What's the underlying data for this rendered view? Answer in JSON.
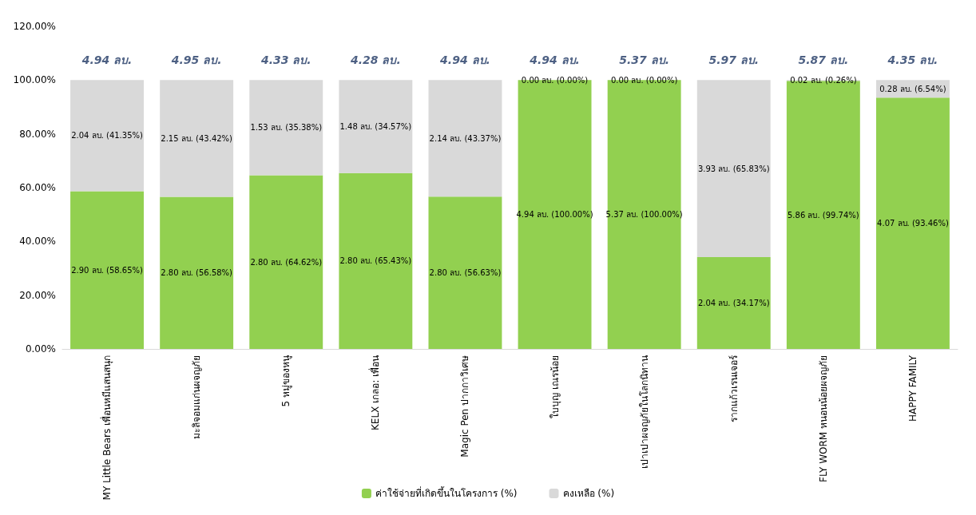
{
  "chart_data": {
    "type": "bar",
    "stacked": true,
    "categories": [
      "MY Little Bears เพื่อนหมีแสนสนุก",
      "มะลิจอมแก่นผจญภัย",
      "5 หมู่ของหนู",
      "KELX เกลอ: เพื่อน",
      "Magic Pen ปากกาวิเศษ",
      "ใบบุญ เณรน้อย",
      "เปาเปาผจญภัยในโลกนิทาน",
      "รากแก้วเรนเจอร์",
      "FLY WORM หนอนน้อยผจญภัย",
      "HAPPY FAMILY"
    ],
    "series": [
      {
        "name": "ค่าใช้จ่ายที่เกิดขึ้นในโครงการ (%)",
        "color": "#92d050",
        "values": [
          58.65,
          56.58,
          64.62,
          65.43,
          56.63,
          100,
          100,
          34.17,
          99.74,
          93.46
        ],
        "value_labels": [
          "2.90 ลบ. (58.65%)",
          "2.80 ลบ. (56.58%)",
          "2.80 ลบ. (64.62%)",
          "2.80 ลบ. (65.43%)",
          "2.80 ลบ. (56.63%)",
          "4.94 ลบ. (100.00%)",
          "5.37 ลบ. (100.00%)",
          "2.04 ลบ. (34.17%)",
          "5.86 ลบ. (99.74%)",
          "4.07 ลบ. (93.46%)"
        ]
      },
      {
        "name": "คงเหลือ (%)",
        "color": "#d9d9d9",
        "values": [
          41.35,
          43.42,
          35.38,
          34.57,
          43.37,
          0,
          0,
          65.83,
          0.26,
          6.54
        ],
        "value_labels": [
          "2.04 ลบ. (41.35%)",
          "2.15 ลบ. (43.42%)",
          "1.53 ลบ. (35.38%)",
          "1.48 ลบ. (34.57%)",
          "2.14 ลบ. (43.37%)",
          "0.00 ลบ. (0.00%)",
          "0.00 ลบ. (0.00%)",
          "3.93 ลบ. (65.83%)",
          "0.02 ลบ. (0.26%)",
          "0.28 ลบ. (6.54%)"
        ]
      }
    ],
    "annotations": [
      {
        "text": "4.94 ลบ.",
        "x": "MY Little Bears เพื่อนหมีแสนสนุก",
        "y": 100
      },
      {
        "text": "4.95 ลบ.",
        "x": "มะลิจอมแก่นผจญภัย",
        "y": 100
      },
      {
        "text": "4.33 ลบ.",
        "x": "5 หมู่ของหนู",
        "y": 100
      },
      {
        "text": "4.28 ลบ.",
        "x": "KELX เกลอ: เพื่อน",
        "y": 100
      },
      {
        "text": "4.94 ลบ.",
        "x": "Magic Pen ปากกาวิเศษ",
        "y": 100
      },
      {
        "text": "4.94 ลบ.",
        "x": "ใบบุญ เณรน้อย",
        "y": 100
      },
      {
        "text": "5.37 ลบ.",
        "x": "เปาเปาผจญภัยในโลกนิทาน",
        "y": 100
      },
      {
        "text": "5.97 ลบ.",
        "x": "รากแก้วเรนเจอร์",
        "y": 100
      },
      {
        "text": "5.87 ลบ.",
        "x": "FLY WORM หนอนน้อยผจญภัย",
        "y": 100
      },
      {
        "text": "4.35 ลบ.",
        "x": "HAPPY FAMILY",
        "y": 100
      }
    ],
    "ylim": [
      0,
      120
    ],
    "yticks": [
      {
        "value": 0,
        "label": "0.00%"
      },
      {
        "value": 20,
        "label": "20.00%"
      },
      {
        "value": 40,
        "label": "40.00%"
      },
      {
        "value": 60,
        "label": "60.00%"
      },
      {
        "value": 80,
        "label": "80.00%"
      },
      {
        "value": 100,
        "label": "100.00%"
      },
      {
        "value": 120,
        "label": "120.00%"
      }
    ],
    "grid": false,
    "legend": "bottom"
  }
}
